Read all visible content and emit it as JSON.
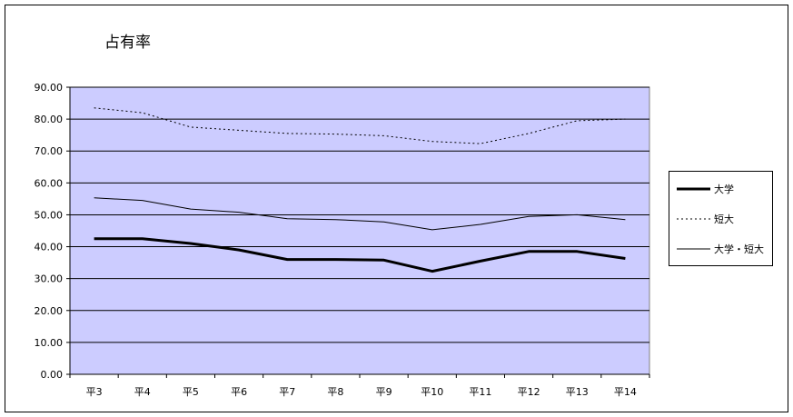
{
  "chart_data": {
    "type": "line",
    "title": "占有率",
    "xlabel": "",
    "ylabel": "",
    "categories": [
      "平3",
      "平4",
      "平5",
      "平6",
      "平7",
      "平8",
      "平9",
      "平10",
      "平11",
      "平12",
      "平13",
      "平14"
    ],
    "ylim": [
      0,
      90
    ],
    "yticks": [
      "0.00",
      "10.00",
      "20.00",
      "30.00",
      "40.00",
      "50.00",
      "60.00",
      "70.00",
      "80.00",
      "90.00"
    ],
    "grid": true,
    "legend_position": "right",
    "plot_background": "#ccccff",
    "series": [
      {
        "name": "大学",
        "style": "thick-solid",
        "values": [
          42.5,
          42.5,
          41.0,
          39.0,
          36.0,
          36.0,
          35.8,
          32.3,
          35.5,
          38.5,
          38.5,
          36.3
        ]
      },
      {
        "name": "短大",
        "style": "dotted",
        "values": [
          83.5,
          82.0,
          77.5,
          76.5,
          75.5,
          75.3,
          74.8,
          73.0,
          72.3,
          75.5,
          79.5,
          80.0
        ]
      },
      {
        "name": "大学・短大",
        "style": "thin-solid",
        "values": [
          55.3,
          54.5,
          51.8,
          50.8,
          48.8,
          48.5,
          47.8,
          45.3,
          47.0,
          49.5,
          50.0,
          48.5
        ]
      }
    ]
  }
}
